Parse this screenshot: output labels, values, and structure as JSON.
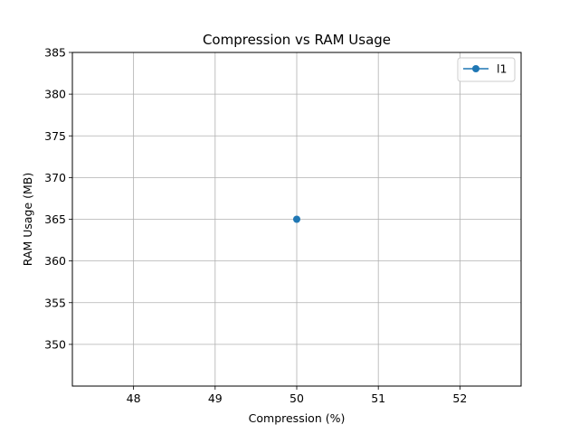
{
  "chart_data": {
    "type": "line",
    "title": "Compression vs RAM Usage",
    "xlabel": "Compression (%)",
    "ylabel": "RAM Usage (MB)",
    "xlim": [
      47.25,
      52.75
    ],
    "ylim": [
      345,
      385
    ],
    "x_ticks": [
      48,
      49,
      50,
      51,
      52
    ],
    "y_ticks": [
      350,
      355,
      360,
      365,
      370,
      375,
      380,
      385
    ],
    "grid": true,
    "legend_position": "top-right",
    "series": [
      {
        "name": "l1",
        "color": "#1f77b4",
        "marker": "circle",
        "x": [
          50
        ],
        "y": [
          365
        ]
      }
    ]
  }
}
